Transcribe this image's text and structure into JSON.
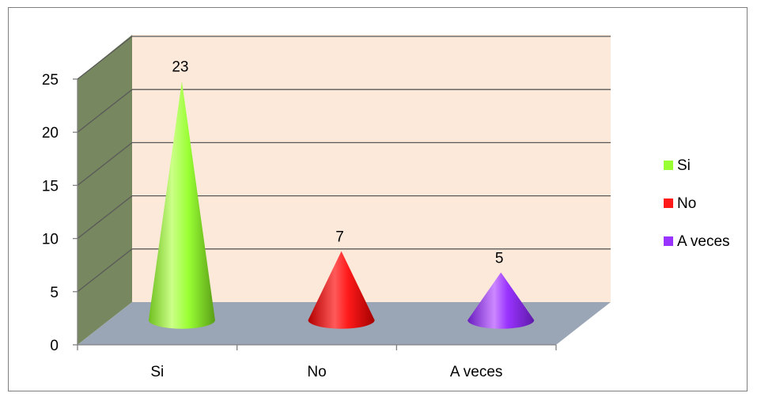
{
  "chart_data": {
    "type": "bar",
    "subtype": "3d-cone",
    "title": "",
    "xlabel": "",
    "ylabel": "",
    "categories": [
      "Si",
      "No",
      "A veces"
    ],
    "values": [
      23,
      7,
      5
    ],
    "data_labels": [
      "23",
      "7",
      "5"
    ],
    "ylim": [
      0,
      25
    ],
    "yticks": [
      "0",
      "5",
      "10",
      "15",
      "20",
      "25"
    ],
    "grid": true,
    "legend": {
      "placement": "right",
      "entries": [
        "Si",
        "No",
        "A veces"
      ]
    },
    "colors": {
      "Si": "#99ff33",
      "No": "#ff1a1a",
      "A veces": "#9933ff",
      "back_wall": "#fde9d9",
      "side_wall": "#77875f",
      "floor": "#9aa6b5",
      "gridline": "#595959"
    }
  }
}
